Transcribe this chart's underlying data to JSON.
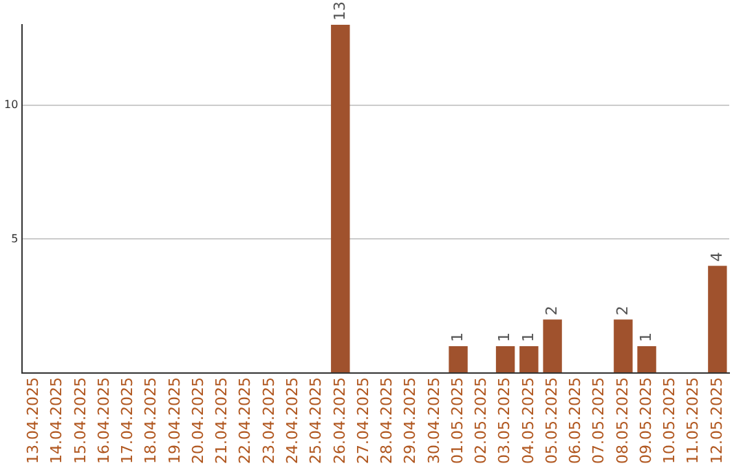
{
  "chart_data": {
    "type": "bar",
    "categories": [
      "13.04.2025",
      "14.04.2025",
      "15.04.2025",
      "16.04.2025",
      "17.04.2025",
      "18.04.2025",
      "19.04.2025",
      "20.04.2025",
      "21.04.2025",
      "22.04.2025",
      "23.04.2025",
      "24.04.2025",
      "25.04.2025",
      "26.04.2025",
      "27.04.2025",
      "28.04.2025",
      "29.04.2025",
      "30.04.2025",
      "01.05.2025",
      "02.05.2025",
      "03.05.2025",
      "04.05.2025",
      "05.05.2025",
      "06.05.2025",
      "07.05.2025",
      "08.05.2025",
      "09.05.2025",
      "10.05.2025",
      "11.05.2025",
      "12.05.2025"
    ],
    "values": [
      0,
      0,
      0,
      0,
      0,
      0,
      0,
      0,
      0,
      0,
      0,
      0,
      0,
      13,
      0,
      0,
      0,
      0,
      1,
      0,
      1,
      1,
      2,
      0,
      0,
      2,
      1,
      0,
      0,
      4
    ],
    "value_labels": [
      null,
      null,
      null,
      null,
      null,
      null,
      null,
      null,
      null,
      null,
      null,
      null,
      null,
      "13",
      null,
      null,
      null,
      null,
      "1",
      null,
      "1",
      "1",
      "2",
      null,
      null,
      "2",
      "1",
      null,
      null,
      "4"
    ],
    "color": "#a0522d",
    "ylim": [
      0,
      13
    ],
    "yticks": [
      {
        "value": 0,
        "label": null
      },
      5,
      10
    ],
    "grid": "y",
    "legend": false
  }
}
